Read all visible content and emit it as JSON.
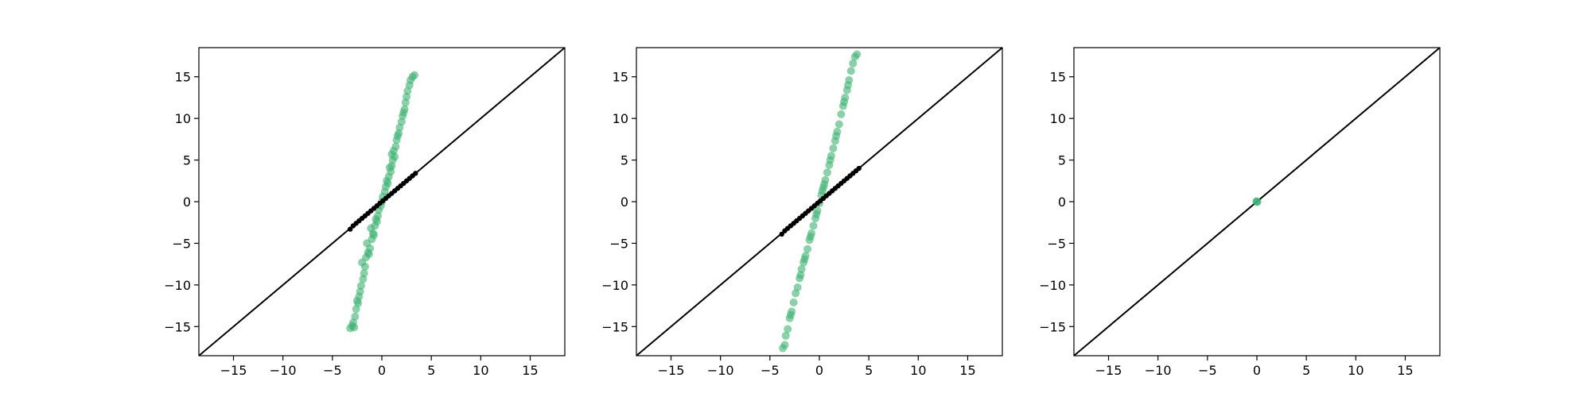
{
  "chart_data": [
    {
      "type": "scatter",
      "xlim": [
        -18.5,
        18.5
      ],
      "ylim": [
        -18.5,
        18.5
      ],
      "xticks": [
        -15,
        -10,
        -5,
        0,
        5,
        10,
        15
      ],
      "yticks": [
        -15,
        -10,
        -5,
        0,
        5,
        10,
        15
      ],
      "tick_labels": [
        "−15",
        "−10",
        "−5",
        "0",
        "5",
        "10",
        "15"
      ],
      "reference_line": {
        "from": [
          -18.5,
          -18.5
        ],
        "to": [
          18.5,
          18.5
        ],
        "color": "#000000"
      },
      "series": [
        {
          "color": "#3cb371",
          "alpha": 0.6,
          "points": [
            [
              -3.2,
              -15.2
            ],
            [
              -3.0,
              -14.9
            ],
            [
              -2.8,
              -15.1
            ],
            [
              -2.9,
              -14.5
            ],
            [
              -2.7,
              -13.8
            ],
            [
              -2.6,
              -12.9
            ],
            [
              -2.4,
              -12.2
            ],
            [
              -2.3,
              -11.4
            ],
            [
              -2.5,
              -11.9
            ],
            [
              -2.1,
              -10.1
            ],
            [
              -1.9,
              -9.3
            ],
            [
              -1.8,
              -8.6
            ],
            [
              -2.0,
              -7.3
            ],
            [
              -1.6,
              -6.7
            ],
            [
              -1.4,
              -6.1
            ],
            [
              -1.2,
              -5.6
            ],
            [
              -1.5,
              -5.0
            ],
            [
              -1.0,
              -4.5
            ],
            [
              -0.9,
              -3.8
            ],
            [
              -1.1,
              -3.2
            ],
            [
              -0.7,
              -2.9
            ],
            [
              -0.6,
              -2.1
            ],
            [
              -0.4,
              -1.7
            ],
            [
              -0.3,
              -1.0
            ],
            [
              -0.1,
              -0.5
            ],
            [
              0.0,
              0.0
            ],
            [
              0.1,
              0.6
            ],
            [
              0.3,
              1.2
            ],
            [
              0.4,
              1.8
            ],
            [
              0.5,
              2.5
            ],
            [
              0.7,
              3.0
            ],
            [
              0.9,
              3.6
            ],
            [
              1.0,
              4.3
            ],
            [
              1.1,
              5.0
            ],
            [
              1.0,
              5.7
            ],
            [
              1.2,
              6.1
            ],
            [
              1.4,
              6.6
            ],
            [
              1.5,
              7.4
            ],
            [
              1.7,
              8.2
            ],
            [
              1.8,
              8.9
            ],
            [
              2.0,
              9.6
            ],
            [
              2.1,
              10.3
            ],
            [
              2.3,
              11.1
            ],
            [
              2.4,
              11.9
            ],
            [
              2.5,
              12.6
            ],
            [
              2.6,
              13.3
            ],
            [
              2.8,
              14.0
            ],
            [
              2.9,
              14.6
            ],
            [
              3.1,
              15.0
            ],
            [
              3.3,
              15.2
            ],
            [
              -1.3,
              -6.3
            ],
            [
              -0.8,
              -4.0
            ],
            [
              0.8,
              4.1
            ],
            [
              1.3,
              5.4
            ],
            [
              -1.7,
              -7.8
            ],
            [
              1.6,
              7.9
            ],
            [
              -0.5,
              -2.4
            ],
            [
              0.6,
              2.2
            ],
            [
              -2.2,
              -10.8
            ],
            [
              2.2,
              10.7
            ]
          ]
        },
        {
          "color": "#000000",
          "alpha": 1,
          "points": [
            [
              -3.2,
              -3.3
            ],
            [
              -2.9,
              -2.9
            ],
            [
              -2.6,
              -2.6
            ],
            [
              -2.3,
              -2.3
            ],
            [
              -2.0,
              -2.0
            ],
            [
              -1.7,
              -1.7
            ],
            [
              -1.4,
              -1.4
            ],
            [
              -1.1,
              -1.1
            ],
            [
              -0.8,
              -0.8
            ],
            [
              -0.5,
              -0.5
            ],
            [
              -0.2,
              -0.2
            ],
            [
              0.1,
              0.1
            ],
            [
              0.4,
              0.4
            ],
            [
              0.7,
              0.7
            ],
            [
              1.0,
              1.0
            ],
            [
              1.3,
              1.3
            ],
            [
              1.6,
              1.6
            ],
            [
              1.9,
              1.9
            ],
            [
              2.2,
              2.2
            ],
            [
              2.5,
              2.5
            ],
            [
              2.8,
              2.8
            ],
            [
              3.1,
              3.1
            ],
            [
              3.4,
              3.4
            ]
          ]
        }
      ]
    },
    {
      "type": "scatter",
      "xlim": [
        -18.5,
        18.5
      ],
      "ylim": [
        -18.5,
        18.5
      ],
      "xticks": [
        -15,
        -10,
        -5,
        0,
        5,
        10,
        15
      ],
      "yticks": [
        -15,
        -10,
        -5,
        0,
        5,
        10,
        15
      ],
      "tick_labels": [
        "−15",
        "−10",
        "−5",
        "0",
        "5",
        "10",
        "15"
      ],
      "reference_line": {
        "from": [
          -18.5,
          -18.5
        ],
        "to": [
          18.5,
          18.5
        ],
        "color": "#000000"
      },
      "series": [
        {
          "color": "#3cb371",
          "alpha": 0.6,
          "points": [
            [
              -3.7,
              -17.6
            ],
            [
              -3.5,
              -17.2
            ],
            [
              -3.4,
              -16.1
            ],
            [
              -3.2,
              -15.3
            ],
            [
              -3.0,
              -14.0
            ],
            [
              -2.8,
              -13.2
            ],
            [
              -2.6,
              -12.1
            ],
            [
              -2.4,
              -11.0
            ],
            [
              -2.2,
              -10.3
            ],
            [
              -2.0,
              -9.2
            ],
            [
              -1.8,
              -8.1
            ],
            [
              -1.6,
              -7.3
            ],
            [
              -1.4,
              -6.5
            ],
            [
              -1.2,
              -5.7
            ],
            [
              -1.0,
              -4.6
            ],
            [
              -0.8,
              -3.8
            ],
            [
              -0.6,
              -2.9
            ],
            [
              -0.4,
              -2.0
            ],
            [
              -0.2,
              -1.1
            ],
            [
              0.0,
              -0.2
            ],
            [
              0.2,
              0.8
            ],
            [
              0.4,
              1.7
            ],
            [
              0.6,
              2.6
            ],
            [
              0.8,
              3.5
            ],
            [
              1.0,
              4.4
            ],
            [
              1.2,
              5.5
            ],
            [
              1.4,
              6.4
            ],
            [
              1.6,
              7.3
            ],
            [
              1.8,
              8.4
            ],
            [
              2.0,
              9.3
            ],
            [
              2.2,
              10.5
            ],
            [
              2.4,
              11.5
            ],
            [
              2.6,
              12.5
            ],
            [
              2.8,
              13.4
            ],
            [
              3.0,
              14.6
            ],
            [
              3.2,
              15.7
            ],
            [
              3.4,
              16.6
            ],
            [
              3.6,
              17.4
            ],
            [
              3.8,
              17.7
            ],
            [
              -2.9,
              -13.6
            ],
            [
              -1.9,
              -8.8
            ],
            [
              -0.9,
              -4.2
            ],
            [
              0.5,
              2.1
            ],
            [
              1.1,
              5.0
            ],
            [
              1.7,
              7.9
            ],
            [
              2.5,
              12.0
            ],
            [
              -0.3,
              -1.5
            ],
            [
              0.3,
              1.3
            ],
            [
              -1.5,
              -6.9
            ],
            [
              2.9,
              14.0
            ]
          ]
        },
        {
          "color": "#000000",
          "alpha": 1,
          "points": [
            [
              -3.8,
              -3.9
            ],
            [
              -3.5,
              -3.5
            ],
            [
              -3.2,
              -3.2
            ],
            [
              -2.9,
              -2.9
            ],
            [
              -2.6,
              -2.6
            ],
            [
              -2.3,
              -2.3
            ],
            [
              -2.0,
              -2.0
            ],
            [
              -1.7,
              -1.7
            ],
            [
              -1.4,
              -1.4
            ],
            [
              -1.1,
              -1.1
            ],
            [
              -0.8,
              -0.8
            ],
            [
              -0.5,
              -0.5
            ],
            [
              -0.2,
              -0.2
            ],
            [
              0.1,
              0.1
            ],
            [
              0.4,
              0.4
            ],
            [
              0.7,
              0.7
            ],
            [
              1.0,
              1.0
            ],
            [
              1.3,
              1.3
            ],
            [
              1.6,
              1.6
            ],
            [
              1.9,
              1.9
            ],
            [
              2.2,
              2.2
            ],
            [
              2.5,
              2.5
            ],
            [
              2.8,
              2.8
            ],
            [
              3.1,
              3.1
            ],
            [
              3.4,
              3.4
            ],
            [
              3.7,
              3.7
            ],
            [
              4.0,
              4.0
            ]
          ]
        }
      ]
    },
    {
      "type": "scatter",
      "xlim": [
        -18.5,
        18.5
      ],
      "ylim": [
        -18.5,
        18.5
      ],
      "xticks": [
        -15,
        -10,
        -5,
        0,
        5,
        10,
        15
      ],
      "yticks": [
        -15,
        -10,
        -5,
        0,
        5,
        10,
        15
      ],
      "tick_labels": [
        "−15",
        "−10",
        "−5",
        "0",
        "5",
        "10",
        "15"
      ],
      "reference_line": {
        "from": [
          -18.5,
          -18.5
        ],
        "to": [
          18.5,
          18.5
        ],
        "color": "#000000"
      },
      "series": [
        {
          "color": "#3cb371",
          "alpha": 0.6,
          "points": [
            [
              0.0,
              0.0
            ],
            [
              0.05,
              -0.05
            ],
            [
              -0.05,
              0.05
            ]
          ]
        }
      ]
    }
  ]
}
